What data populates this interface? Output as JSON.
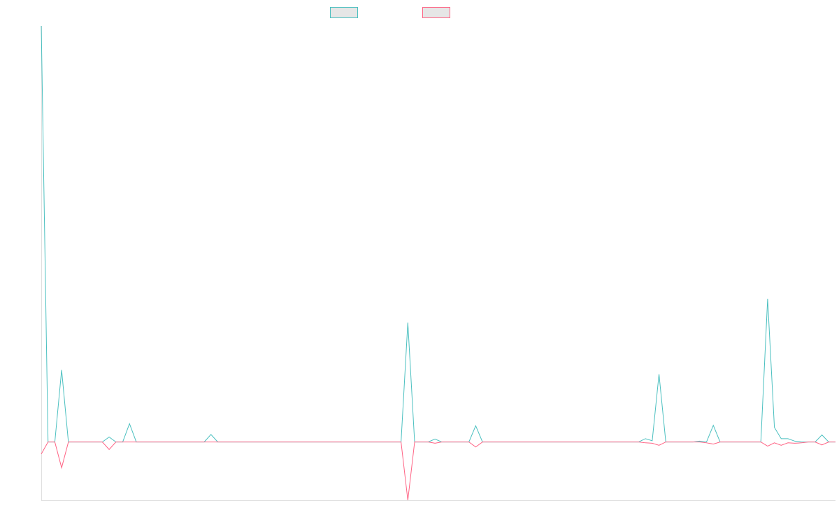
{
  "chart_data": {
    "type": "line",
    "series": [
      {
        "color": "#4bc0c0",
        "values": [
          100,
          0,
          0,
          17.3,
          0,
          0,
          0,
          0,
          0,
          0,
          1.2,
          0,
          0,
          4.4,
          0,
          0,
          0,
          0,
          0,
          0,
          0,
          0,
          0,
          0,
          0,
          1.8,
          0,
          0,
          0,
          0,
          0,
          0,
          0,
          0,
          0,
          0,
          0,
          0,
          0,
          0,
          0,
          0,
          0,
          0,
          0,
          0,
          0,
          0,
          0,
          0,
          0,
          0,
          0,
          0,
          28.7,
          0,
          0,
          0,
          0.7,
          0,
          0,
          0,
          0,
          0,
          3.9,
          0,
          0,
          0,
          0,
          0,
          0,
          0,
          0,
          0,
          0,
          0,
          0,
          0,
          0,
          0,
          0,
          0,
          0,
          0,
          0,
          0,
          0,
          0,
          0,
          0.8,
          0.3,
          16.3,
          0,
          0,
          0,
          0,
          0,
          0.2,
          0,
          4,
          0,
          0,
          0,
          0,
          0,
          0,
          0,
          34.4,
          3.5,
          0.8,
          0.8,
          0.2,
          0,
          0,
          0,
          1.7,
          0,
          0
        ]
      },
      {
        "color": "#ff6384",
        "values": [
          -2.9,
          0,
          0,
          -6.2,
          0,
          0,
          0,
          0,
          0,
          0,
          -1.8,
          0,
          0,
          0,
          0,
          0,
          0,
          0,
          0,
          0,
          0,
          0,
          0,
          0,
          0,
          0,
          0,
          0,
          0,
          0,
          0,
          0,
          0,
          0,
          0,
          0,
          0,
          0,
          0,
          0,
          0,
          0,
          0,
          0,
          0,
          0,
          0,
          0,
          0,
          0,
          0,
          0,
          0,
          0,
          -14,
          0,
          0,
          0,
          -0.3,
          0,
          0,
          0,
          0,
          0,
          -1.2,
          0,
          0,
          0,
          0,
          0,
          0,
          0,
          0,
          0,
          0,
          0,
          0,
          0,
          0,
          0,
          0,
          0,
          0,
          0,
          0,
          0,
          0,
          0,
          0,
          -0.2,
          -0.3,
          -0.8,
          0,
          0,
          0,
          0,
          0,
          0,
          -0.2,
          -0.5,
          0,
          0,
          0,
          0,
          0,
          0,
          0,
          -1,
          -0.2,
          -0.8,
          -0.2,
          -0.3,
          -0.2,
          0,
          0,
          -0.7,
          0,
          0
        ]
      }
    ],
    "ylim": [
      -14,
      100
    ],
    "grid": false,
    "legend": "top"
  }
}
